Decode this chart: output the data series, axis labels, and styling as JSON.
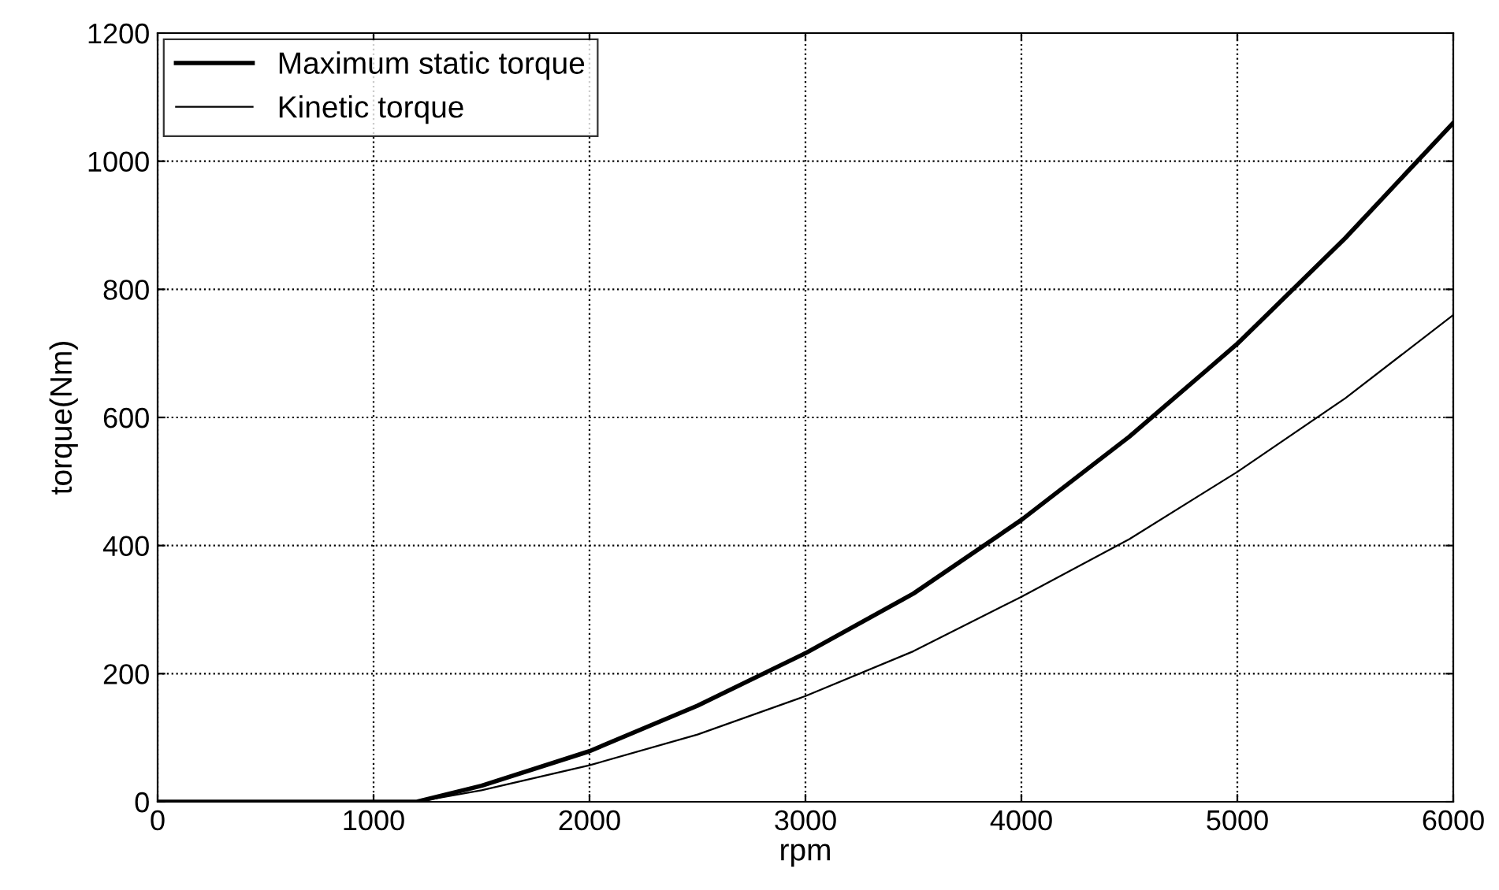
{
  "chart_data": {
    "type": "line",
    "xlabel": "rpm",
    "ylabel": "torque(Nm)",
    "x": [
      0,
      500,
      1000,
      1200,
      1500,
      2000,
      2500,
      3000,
      3500,
      4000,
      4500,
      5000,
      5500,
      6000
    ],
    "series": [
      {
        "name": "Maximum static torque",
        "color": "#000000",
        "values": [
          0,
          0,
          0,
          0,
          25,
          79,
          150,
          232,
          325,
          440,
          570,
          715,
          880,
          1060
        ]
      },
      {
        "name": "Kinetic torque",
        "color": "#000000",
        "values": [
          0,
          0,
          0,
          0,
          18,
          57,
          105,
          165,
          235,
          320,
          410,
          515,
          630,
          760
        ]
      }
    ],
    "xlim": [
      0,
      6000
    ],
    "ylim": [
      0,
      1200
    ],
    "xticks": [
      0,
      1000,
      2000,
      3000,
      4000,
      5000,
      6000
    ],
    "yticks": [
      0,
      200,
      400,
      600,
      800,
      1000,
      1200
    ],
    "grid": true,
    "legend": "top left",
    "line_style": "solid",
    "marker": "none"
  }
}
